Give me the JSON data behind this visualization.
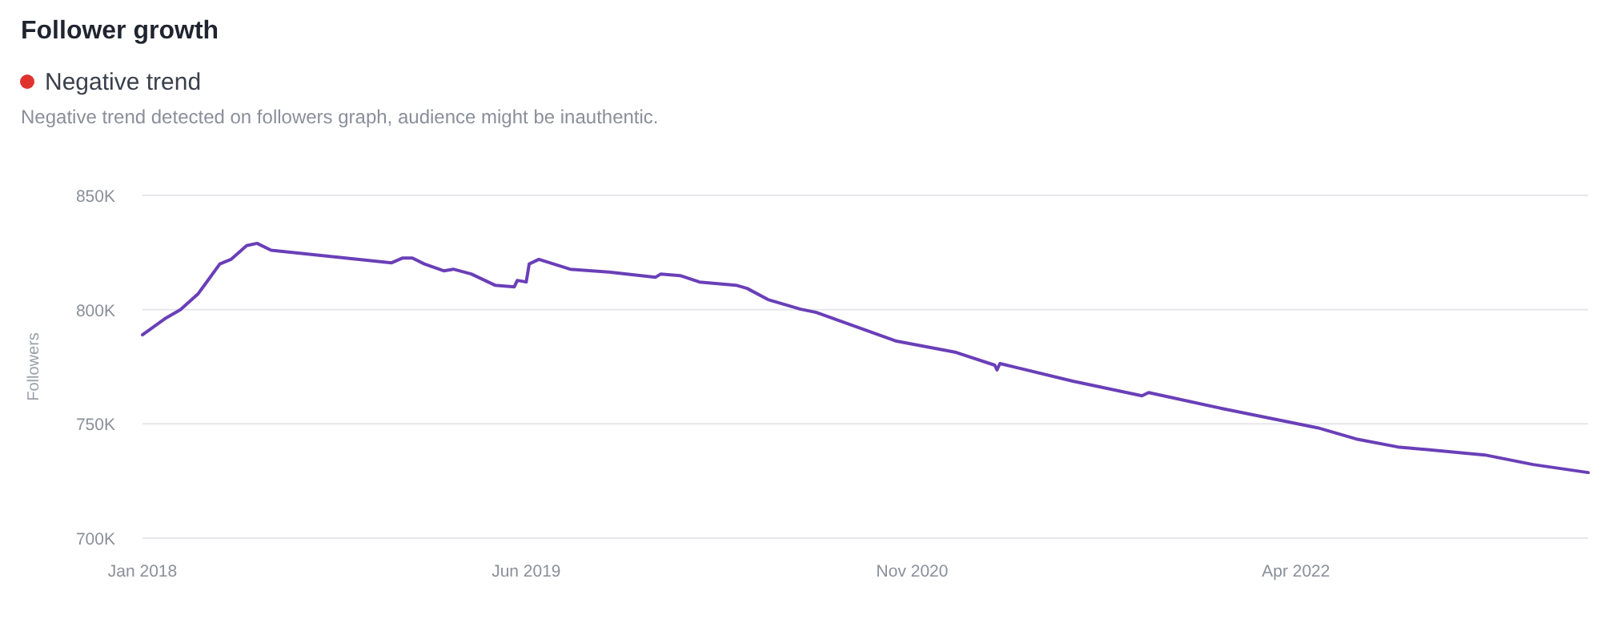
{
  "chart_data": {
    "type": "line",
    "title": "Follower growth",
    "subtitle": "Negative trend detected on followers graph, audience might be inauthentic.",
    "annotations": [
      "Negative trend"
    ],
    "ylabel": "Followers",
    "x": [
      "2018-01-01",
      "2018-01-31",
      "2018-02-21",
      "2018-03-17",
      "2018-04-15",
      "2018-04-30",
      "2018-05-21",
      "2018-06-04",
      "2018-06-23",
      "2018-12-02",
      "2018-12-17",
      "2018-12-30",
      "2019-01-15",
      "2019-02-10",
      "2019-02-23",
      "2019-03-19",
      "2019-04-20",
      "2019-05-16",
      "2019-05-20",
      "2019-06-01",
      "2019-06-05",
      "2019-06-18",
      "2019-07-30",
      "2019-09-25",
      "2019-11-22",
      "2019-11-29",
      "2019-12-25",
      "2020-01-20",
      "2020-03-09",
      "2020-03-24",
      "2020-04-21",
      "2020-06-04",
      "2020-06-25",
      "2020-10-11",
      "2020-12-30",
      "2021-02-20",
      "2021-02-23",
      "2021-02-27",
      "2021-06-05",
      "2021-09-06",
      "2021-09-15",
      "2021-12-23",
      "2022-04-30",
      "2022-06-21",
      "2022-08-16",
      "2022-12-11",
      "2023-02-14",
      "2023-04-29"
    ],
    "series": [
      {
        "color": "#6a3fb8",
        "values": [
          789000,
          796000,
          800000,
          807000,
          820000,
          822000,
          828000,
          829000,
          826000,
          820500,
          822600,
          822600,
          820000,
          817000,
          817700,
          815600,
          810700,
          810000,
          812800,
          812100,
          820000,
          822000,
          817700,
          816300,
          814200,
          815600,
          814900,
          812100,
          810700,
          809300,
          804400,
          800200,
          798800,
          786200,
          781300,
          775700,
          773600,
          776400,
          768700,
          762300,
          763700,
          756700,
          748300,
          743400,
          739900,
          736400,
          732200,
          728700
        ]
      }
    ],
    "xlim": [
      "2018-01-01",
      "2023-04-29"
    ],
    "xticks": [
      {
        "value": "2018-01-01",
        "label": "Jan 2018"
      },
      {
        "value": "2019-06-01",
        "label": "Jun 2019"
      },
      {
        "value": "2020-11-01",
        "label": "Nov 2020"
      },
      {
        "value": "2022-04-01",
        "label": "Apr 2022"
      }
    ],
    "ylim": [
      700000,
      850000
    ],
    "yticks": [
      {
        "value": 700000,
        "label": "700K"
      },
      {
        "value": 750000,
        "label": "750K"
      },
      {
        "value": 800000,
        "label": "800K"
      },
      {
        "value": 850000,
        "label": "850K"
      }
    ],
    "grid": "y",
    "marker": "none",
    "line_style": "solid"
  }
}
